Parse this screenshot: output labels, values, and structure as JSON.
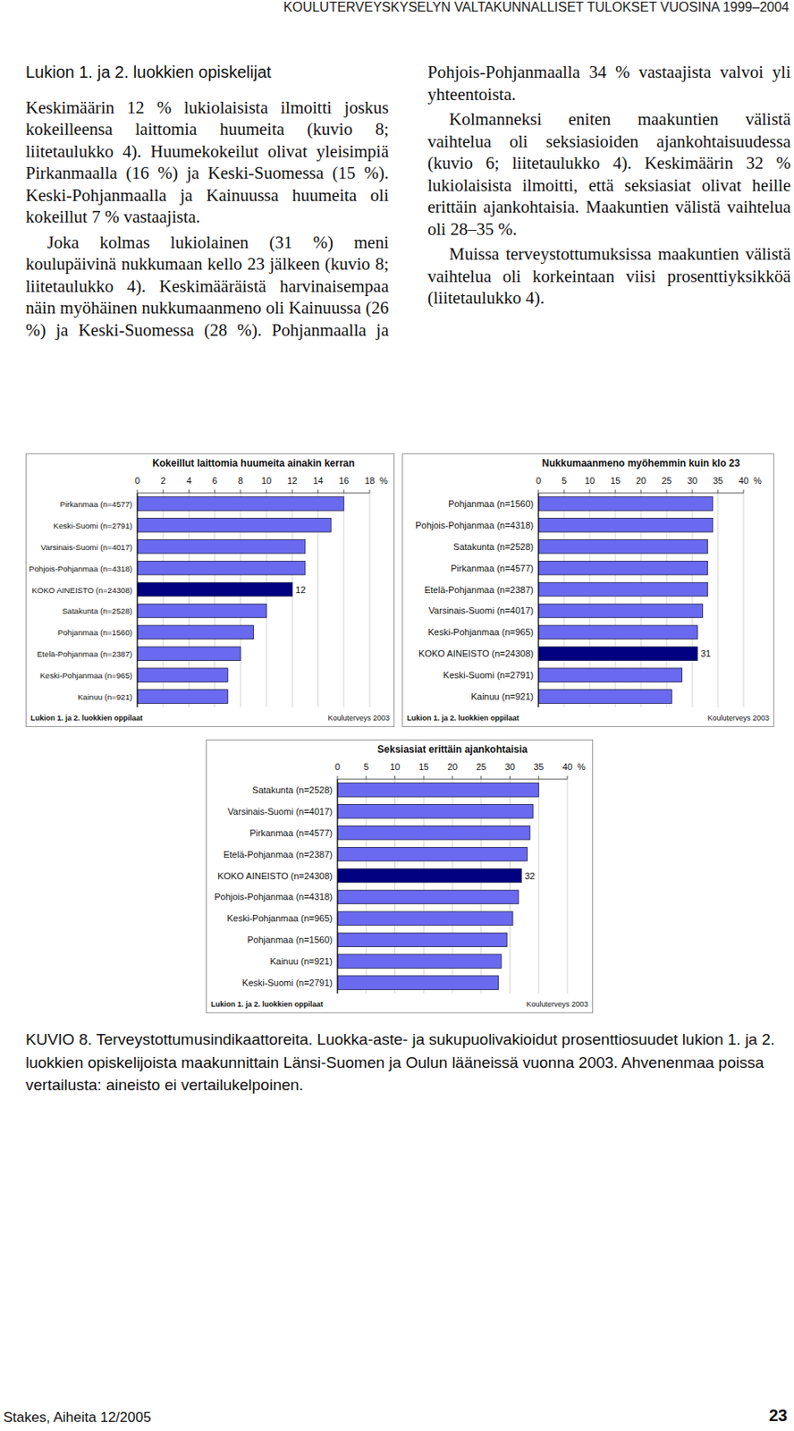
{
  "header": "KOULUTERVEYSKYSELYN VALTAKUNNALLISET TULOKSET VUOSINA 1999–2004",
  "text": {
    "heading": "Lukion 1. ja 2. luokkien opiskelijat",
    "paragraphs": [
      "Keskimäärin 12 % lukiolaisista ilmoitti joskus kokeilleensa laittomia huumeita (kuvio 8; liitetaulukko 4). Huumekokeilut olivat yleisimpiä Pirkanmaalla (16 %) ja Keski-Suomessa (15 %). Keski-Pohjanmaalla ja Kainuussa huumeita oli kokeillut 7 % vastaajista.",
      "Joka kolmas lukiolainen (31 %) meni koulupäivinä nukkumaan kello 23 jälkeen (kuvio 8; liitetaulukko 4). Keskimääräistä harvinaisempaa näin myöhäinen nukkumaanmeno oli Kainuussa (26 %) ja Keski-Suomessa (28 %). Pohjanmaalla ja Pohjois-Pohjanmaalla 34 % vastaajista valvoi yli yhteentoista.",
      "Kolmanneksi eniten maakuntien välistä vaihtelua oli seksiasioiden ajankohtaisuudessa (kuvio 6; liitetaulukko 4). Keskimäärin 32 % lukiolaisista ilmoitti, että seksiasiat olivat heille erittäin ajankohtaisia. Maakuntien välistä vaihtelua oli 28–35 %.",
      "Muissa terveystottumuksissa maakuntien välistä vaihtelua oli korkeintaan viisi prosenttiyksikköä (liitetaulukko 4)."
    ]
  },
  "chart_data": [
    {
      "type": "bar",
      "orientation": "horizontal",
      "title": "Kokeillut laittomia huumeita ainakin kerran",
      "categories": [
        "Pirkanmaa (n=4577)",
        "Keski-Suomi (n=2791)",
        "Varsinais-Suomi (n=4017)",
        "Pohjois-Pohjanmaa (n=4318)",
        "KOKO AINEISTO (n=24308)",
        "Satakunta (n=2528)",
        "Pohjanmaa (n=1560)",
        "Etelä-Pohjanmaa (n=2387)",
        "Keski-Pohjanmaa (n=965)",
        "Kainuu (n=921)"
      ],
      "values": [
        16,
        15,
        13,
        13,
        12,
        10,
        9,
        8,
        7,
        7
      ],
      "value_labels": [
        null,
        null,
        null,
        null,
        "12",
        null,
        null,
        null,
        null,
        null
      ],
      "data_labels": true,
      "colors": [
        "#6a6af0",
        "#6a6af0",
        "#6a6af0",
        "#6a6af0",
        "#000080",
        "#6a6af0",
        "#6a6af0",
        "#6a6af0",
        "#6a6af0",
        "#6a6af0"
      ],
      "xlim": [
        0,
        18
      ],
      "xticks": [
        0,
        2,
        4,
        6,
        8,
        10,
        12,
        14,
        16,
        18
      ],
      "xlabel": "%",
      "grid": true,
      "footnote": "Lukion 1. ja 2. luokkien oppilaat",
      "source": "Kouluterveys 2003"
    },
    {
      "type": "bar",
      "orientation": "horizontal",
      "title": "Nukkumaanmeno myöhemmin kuin klo 23",
      "categories": [
        "Pohjanmaa (n=1560)",
        "Pohjois-Pohjanmaa (n=4318)",
        "Satakunta (n=2528)",
        "Pirkanmaa (n=4577)",
        "Etelä-Pohjanmaa (n=2387)",
        "Varsinais-Suomi (n=4017)",
        "Keski-Pohjanmaa (n=965)",
        "KOKO AINEISTO (n=24308)",
        "Keski-Suomi (n=2791)",
        "Kainuu (n=921)"
      ],
      "values": [
        34,
        34,
        33,
        33,
        33,
        32,
        31,
        31,
        28,
        26
      ],
      "value_labels": [
        null,
        null,
        null,
        null,
        null,
        null,
        null,
        "31",
        null,
        null
      ],
      "data_labels": true,
      "colors": [
        "#6a6af0",
        "#6a6af0",
        "#6a6af0",
        "#6a6af0",
        "#6a6af0",
        "#6a6af0",
        "#6a6af0",
        "#000080",
        "#6a6af0",
        "#6a6af0"
      ],
      "xlim": [
        0,
        40
      ],
      "xticks": [
        0,
        5,
        10,
        15,
        20,
        25,
        30,
        35,
        40
      ],
      "xlabel": "%",
      "grid": true,
      "footnote": "Lukion 1. ja 2. luokkien oppilaat",
      "source": "Kouluterveys 2003"
    },
    {
      "type": "bar",
      "orientation": "horizontal",
      "title": "Seksiasiat erittäin ajankohtaisia",
      "categories": [
        "Satakunta (n=2528)",
        "Varsinais-Suomi (n=4017)",
        "Pirkanmaa (n=4577)",
        "Etelä-Pohjanmaa (n=2387)",
        "KOKO AINEISTO (n=24308)",
        "Pohjois-Pohjanmaa (n=4318)",
        "Keski-Pohjanmaa (n=965)",
        "Pohjanmaa (n=1560)",
        "Kainuu (n=921)",
        "Keski-Suomi (n=2791)"
      ],
      "values": [
        35,
        34,
        33.5,
        33,
        32,
        31.5,
        30.5,
        29.5,
        28.5,
        28
      ],
      "value_labels": [
        null,
        null,
        null,
        null,
        "32",
        null,
        null,
        null,
        null,
        null
      ],
      "data_labels": true,
      "colors": [
        "#6a6af0",
        "#6a6af0",
        "#6a6af0",
        "#6a6af0",
        "#000080",
        "#6a6af0",
        "#6a6af0",
        "#6a6af0",
        "#6a6af0",
        "#6a6af0"
      ],
      "xlim": [
        0,
        40
      ],
      "xticks": [
        0,
        5,
        10,
        15,
        20,
        25,
        30,
        35,
        40
      ],
      "xlabel": "%",
      "grid": true,
      "footnote": "Lukion 1. ja 2. luokkien oppilaat",
      "source": "Kouluterveys 2003"
    }
  ],
  "caption": "KUVIO 8. Terveystottumusindikaattoreita. Luokka-aste- ja sukupuolivakioidut prosenttiosuudet lukion 1. ja 2. luokkien opiskelijoista maakunnittain Länsi-Suomen ja Oulun lääneissä vuonna 2003. Ahvenenmaa poissa vertailusta: aineisto ei vertailukelpoinen.",
  "footer": {
    "left": "Stakes, Aiheita 12/2005",
    "page": "23"
  }
}
